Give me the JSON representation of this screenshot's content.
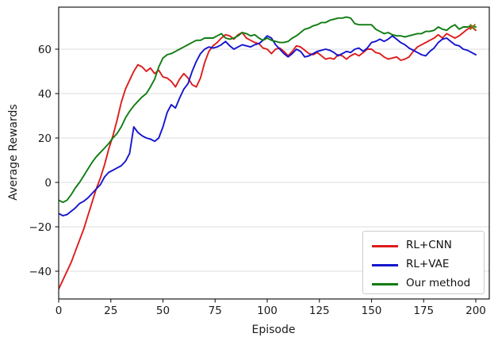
{
  "chart_data": {
    "type": "line",
    "title": "",
    "xlabel": "Episode",
    "ylabel": "Average Rewards",
    "grid": "horizontal",
    "legend_position": "lower right",
    "xlim": [
      0,
      206.5
    ],
    "ylim": [
      -52.5,
      79
    ],
    "x_ticks": [
      {
        "v": 0,
        "label": "0"
      },
      {
        "v": 25,
        "label": "25"
      },
      {
        "v": 50,
        "label": "50"
      },
      {
        "v": 75,
        "label": "75"
      },
      {
        "v": 100,
        "label": "100"
      },
      {
        "v": 125,
        "label": "125"
      },
      {
        "v": 150,
        "label": "150"
      },
      {
        "v": 175,
        "label": "175"
      },
      {
        "v": 200,
        "label": "200"
      }
    ],
    "y_ticks": [
      {
        "v": -40,
        "label": "−40"
      },
      {
        "v": -20,
        "label": "−20"
      },
      {
        "v": 0,
        "label": "0"
      },
      {
        "v": 20,
        "label": "20"
      },
      {
        "v": 40,
        "label": "40"
      },
      {
        "v": 60,
        "label": "60"
      }
    ],
    "x": [
      0,
      2,
      4,
      6,
      8,
      10,
      12,
      14,
      16,
      18,
      20,
      22,
      24,
      26,
      28,
      30,
      32,
      34,
      36,
      38,
      40,
      42,
      44,
      46,
      48,
      50,
      52,
      54,
      56,
      58,
      60,
      62,
      64,
      66,
      68,
      70,
      72,
      74,
      76,
      78,
      80,
      82,
      84,
      86,
      88,
      90,
      92,
      94,
      96,
      98,
      100,
      102,
      104,
      106,
      108,
      110,
      112,
      114,
      116,
      118,
      120,
      122,
      124,
      126,
      128,
      130,
      132,
      134,
      136,
      138,
      140,
      142,
      144,
      146,
      148,
      150,
      152,
      154,
      156,
      158,
      160,
      162,
      164,
      166,
      168,
      170,
      172,
      174,
      176,
      178,
      180,
      182,
      184,
      186,
      188,
      190,
      192,
      194,
      196,
      198,
      200
    ],
    "series": [
      {
        "name": "RL+CNN",
        "color": "#dd1c1c",
        "values": [
          -48,
          -44,
          -40,
          -36,
          -31,
          -26,
          -21,
          -15,
          -9,
          -3,
          2,
          8,
          15,
          21,
          28,
          36,
          42,
          46,
          50,
          53,
          52,
          50,
          51.5,
          49,
          50.5,
          47.5,
          47,
          45.5,
          43,
          46.5,
          49,
          47,
          44,
          43,
          47,
          54,
          59,
          61.5,
          63,
          65,
          66.5,
          66,
          64.5,
          66.5,
          67.5,
          65,
          64,
          63,
          62.5,
          60.5,
          60,
          58,
          60,
          60.5,
          59,
          57,
          59,
          61.5,
          61,
          59.5,
          58,
          57.5,
          58.5,
          57,
          55.5,
          56,
          55.5,
          57.5,
          57,
          55.5,
          57,
          58,
          57,
          58.5,
          60,
          60,
          58.5,
          58,
          56.5,
          55.5,
          56,
          56.5,
          55,
          55.5,
          56.5,
          59,
          61,
          62,
          63,
          64,
          65,
          66.5,
          65,
          67,
          66,
          65,
          66,
          67.5,
          69,
          70,
          68.5
        ]
      },
      {
        "name": "RL+VAE",
        "color": "#1515cf",
        "values": [
          -14,
          -15,
          -14.5,
          -13,
          -11.5,
          -9.5,
          -8.5,
          -7,
          -5,
          -3,
          -1,
          2.5,
          4.5,
          5.5,
          6.5,
          7.5,
          9.5,
          13,
          25,
          22.5,
          21,
          20,
          19.5,
          18.5,
          20,
          25,
          31.5,
          35,
          33.5,
          38,
          42,
          44.5,
          50,
          54.5,
          58,
          60,
          61,
          60.5,
          61,
          62,
          63.5,
          61.5,
          60,
          61,
          62,
          61.5,
          61,
          62,
          62.5,
          64,
          66,
          65,
          62,
          60,
          58,
          56.5,
          58,
          60,
          59,
          56.5,
          57,
          58,
          59,
          59.5,
          60,
          59.5,
          58.5,
          57,
          58,
          59,
          58.5,
          60,
          60.5,
          59,
          60.5,
          63,
          63.5,
          64.5,
          63.5,
          64.5,
          66,
          64.5,
          63,
          62,
          60.5,
          59.5,
          58.5,
          57.5,
          57,
          59,
          60.5,
          63,
          64.5,
          65,
          63.5,
          62,
          61.5,
          60,
          59.5,
          58.5,
          57.5
        ]
      },
      {
        "name": "Our method",
        "color": "#107c12",
        "values": [
          -8,
          -9,
          -8,
          -5.5,
          -2.5,
          0,
          3,
          6,
          9,
          11.5,
          13.5,
          15.5,
          17.5,
          20,
          22,
          25,
          29,
          32,
          34.5,
          36.5,
          38.5,
          40,
          43,
          46.5,
          52,
          56,
          57.5,
          58,
          59,
          60,
          61,
          62,
          63,
          64,
          64,
          65,
          65,
          65,
          66,
          67,
          65,
          64.5,
          65,
          66,
          67.5,
          67,
          66,
          66.5,
          65,
          64,
          65,
          64,
          63.5,
          63,
          63,
          63.5,
          65,
          66,
          67.5,
          69,
          69.5,
          70.5,
          71,
          72,
          72,
          73,
          73.5,
          74,
          74,
          74.5,
          74,
          71.5,
          71,
          71,
          71,
          71,
          69,
          68,
          67,
          67.5,
          66.5,
          66,
          66,
          65.5,
          66,
          66.5,
          67,
          67,
          68,
          68,
          68.5,
          70,
          69,
          68.5,
          70,
          71,
          69,
          70,
          70,
          70.5,
          70
        ]
      }
    ],
    "end_marker": {
      "x": 198.5,
      "y": 70,
      "symbol": "x",
      "color": "#8f731f"
    }
  }
}
